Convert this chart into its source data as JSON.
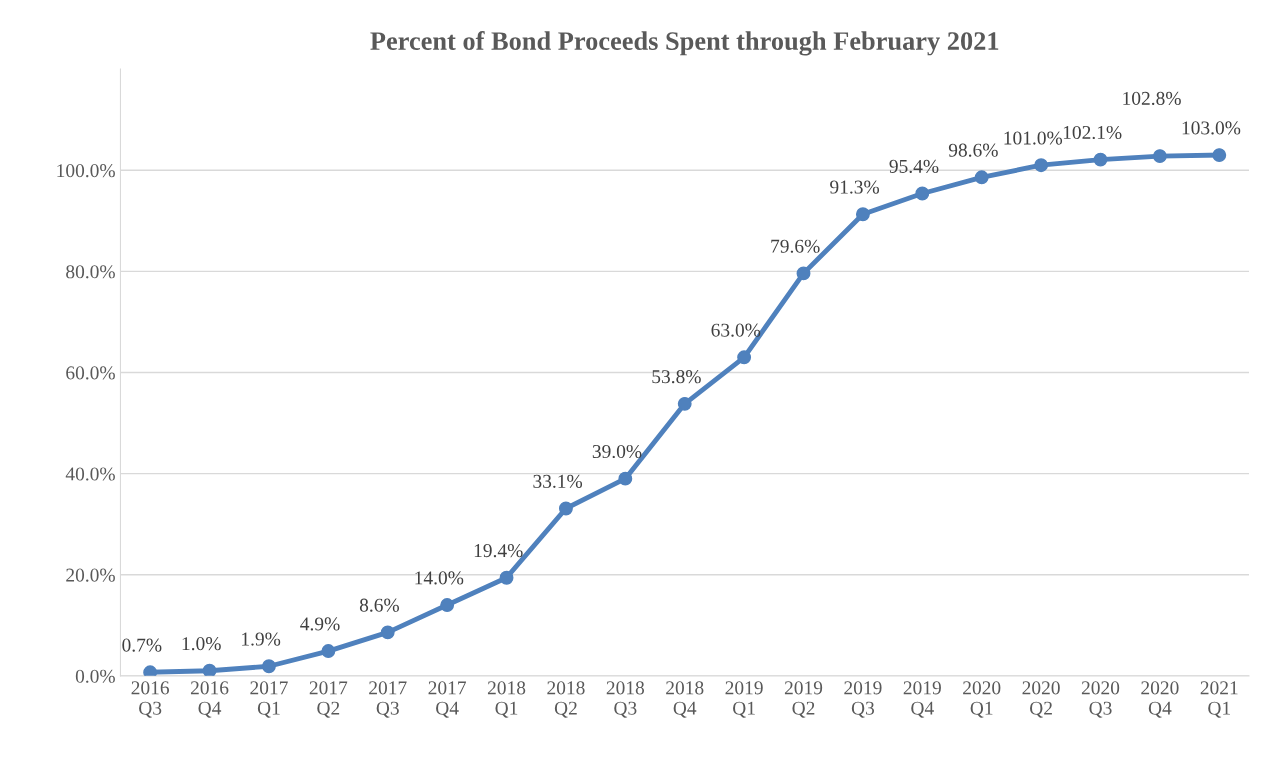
{
  "chart_data": {
    "type": "line",
    "title": "Percent of Bond Proceeds Spent through February 2021",
    "categories": [
      "2016\nQ3",
      "2016\nQ4",
      "2017\nQ1",
      "2017\nQ2",
      "2017\nQ3",
      "2017\nQ4",
      "2018\nQ1",
      "2018\nQ2",
      "2018\nQ3",
      "2018\nQ4",
      "2019\nQ1",
      "2019\nQ2",
      "2019\nQ3",
      "2019\nQ4",
      "2020\nQ1",
      "2020\nQ2",
      "2020\nQ3",
      "2020\nQ4",
      "2021\nQ1"
    ],
    "values": [
      0.7,
      1.0,
      1.9,
      4.9,
      8.6,
      14.0,
      19.4,
      33.1,
      39.0,
      53.8,
      63.0,
      79.6,
      91.3,
      95.4,
      98.6,
      101.0,
      102.1,
      102.8,
      103.0
    ],
    "value_labels": [
      "0.7%",
      "1.0%",
      "1.9%",
      "4.9%",
      "8.6%",
      "14.0%",
      "19.4%",
      "33.1%",
      "39.0%",
      "53.8%",
      "63.0%",
      "79.6%",
      "91.3%",
      "95.4%",
      "98.6%",
      "101.0%",
      "102.1%",
      "102.8%",
      "103.0%"
    ],
    "color": "#4f81bd",
    "marker": "circle",
    "line_style": "solid",
    "grid": "y",
    "legend": false,
    "ylim": [
      0,
      120
    ],
    "yticks": [
      {
        "value": 0,
        "label": "0.0%"
      },
      {
        "value": 20,
        "label": "20.0%"
      },
      {
        "value": 40,
        "label": "40.0%"
      },
      {
        "value": 60,
        "label": "60.0%"
      },
      {
        "value": 80,
        "label": "80.0%"
      },
      {
        "value": 100,
        "label": "100.0%"
      }
    ]
  }
}
